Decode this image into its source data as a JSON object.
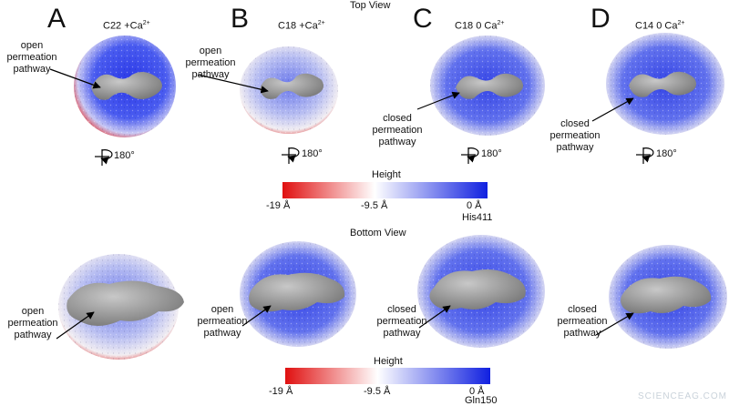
{
  "figure": {
    "top_view_label": "Top View",
    "bottom_view_label": "Bottom View",
    "panels": [
      {
        "letter": "A",
        "condition_main": "C22 +Ca",
        "condition_sup": "2+",
        "top_annotation": "open permeation pathway",
        "bottom_annotation": "open permeation pathway",
        "rotation": "180°"
      },
      {
        "letter": "B",
        "condition_main": "C18 +Ca",
        "condition_sup": "2+",
        "top_annotation": "open permeation pathway",
        "bottom_annotation": "open permeation pathway",
        "rotation": "180°"
      },
      {
        "letter": "C",
        "condition_main": "C18 0 Ca",
        "condition_sup": "2+",
        "top_annotation": "closed permeation pathway",
        "bottom_annotation": "closed permeation pathway",
        "rotation": "180°"
      },
      {
        "letter": "D",
        "condition_main": "C14 0 Ca",
        "condition_sup": "2+",
        "top_annotation": "closed permeation pathway",
        "bottom_annotation": "closed permeation pathway",
        "rotation": "180°"
      }
    ],
    "scale_top": {
      "title": "Height",
      "min": "-19 Å",
      "mid": "-9.5 Å",
      "max": "0 Å",
      "residue": "His411"
    },
    "scale_bottom": {
      "title": "Height",
      "min": "-19 Å",
      "mid": "-9.5 Å",
      "max": "0 Å",
      "residue": "Gln150"
    },
    "watermark": "SCIENCEAG.COM",
    "colors": {
      "red": "#e01010",
      "white": "#ffffff",
      "blue": "#1020e0",
      "gray": "#8a8a8a"
    }
  }
}
